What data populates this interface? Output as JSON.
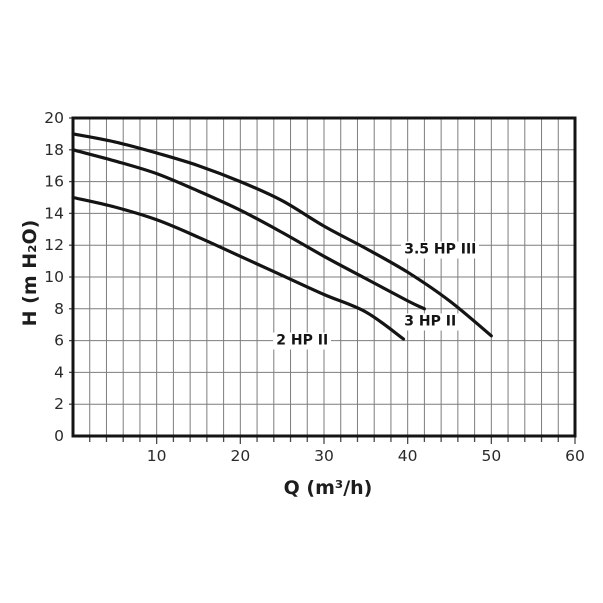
{
  "page": {
    "background_color": "#ffffff",
    "description_hidden_from_pixels": ""
  },
  "chart_data": {
    "type": "line",
    "title": "",
    "xlabel": "Q (m³/h)",
    "ylabel": "H (m H₂O)",
    "xlim": [
      0,
      60
    ],
    "ylim": [
      0,
      20
    ],
    "x_tick_labels": [
      10,
      20,
      30,
      40,
      50,
      60
    ],
    "y_tick_labels": [
      0,
      2,
      4,
      6,
      8,
      10,
      12,
      14,
      16,
      18,
      20
    ],
    "grid": {
      "visible": true,
      "step_x": 2,
      "step_y": 2,
      "color": "#7d7d7d"
    },
    "legend_position": "inline-labels",
    "series": [
      {
        "name": "3.5 HP III",
        "points": [
          [
            0,
            19.0
          ],
          [
            5,
            18.5
          ],
          [
            10,
            17.8
          ],
          [
            15,
            17.0
          ],
          [
            20,
            16.0
          ],
          [
            25,
            14.8
          ],
          [
            30,
            13.2
          ],
          [
            35,
            11.8
          ],
          [
            40,
            10.3
          ],
          [
            45,
            8.5
          ],
          [
            50,
            6.3
          ]
        ],
        "label_at": [
          43.9,
          11.7
        ]
      },
      {
        "name": "3 HP II",
        "points": [
          [
            0,
            18.0
          ],
          [
            5,
            17.3
          ],
          [
            10,
            16.5
          ],
          [
            15,
            15.4
          ],
          [
            20,
            14.2
          ],
          [
            25,
            12.8
          ],
          [
            30,
            11.3
          ],
          [
            35,
            9.9
          ],
          [
            40,
            8.5
          ],
          [
            42,
            8.0
          ]
        ],
        "label_at": [
          42.7,
          7.2
        ]
      },
      {
        "name": "2 HP II",
        "points": [
          [
            0,
            15.0
          ],
          [
            5,
            14.4
          ],
          [
            10,
            13.6
          ],
          [
            15,
            12.5
          ],
          [
            20,
            11.3
          ],
          [
            25,
            10.1
          ],
          [
            30,
            8.9
          ],
          [
            35,
            7.8
          ],
          [
            39.5,
            6.1
          ]
        ],
        "label_at": [
          27.4,
          6.0
        ]
      }
    ],
    "colors": {
      "curve": "#141414",
      "frame": "#141414",
      "grid": "#7d7d7d",
      "tick": "#4a4a4a",
      "text": "#2a2a2a"
    }
  }
}
